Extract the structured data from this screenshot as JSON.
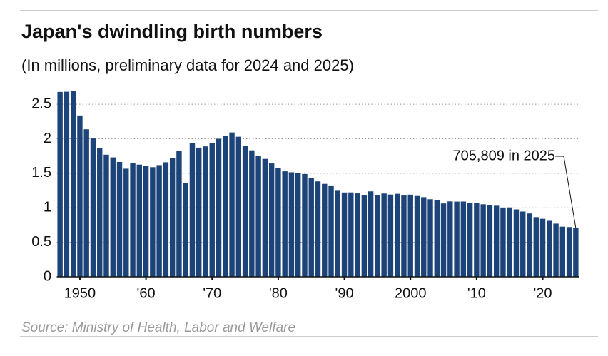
{
  "chart_data": {
    "type": "bar",
    "title": "Japan's dwindling birth numbers",
    "subtitle": "(In millions, preliminary data for 2024 and 2025)",
    "source": "Source: Ministry of Health, Labor and Welfare",
    "annotation": "705,809 in 2025",
    "color": "#1d4478",
    "x": [
      1947,
      1948,
      1949,
      1950,
      1951,
      1952,
      1953,
      1954,
      1955,
      1956,
      1957,
      1958,
      1959,
      1960,
      1961,
      1962,
      1963,
      1964,
      1965,
      1966,
      1967,
      1968,
      1969,
      1970,
      1971,
      1972,
      1973,
      1974,
      1975,
      1976,
      1977,
      1978,
      1979,
      1980,
      1981,
      1982,
      1983,
      1984,
      1985,
      1986,
      1987,
      1988,
      1989,
      1990,
      1991,
      1992,
      1993,
      1994,
      1995,
      1996,
      1997,
      1998,
      1999,
      2000,
      2001,
      2002,
      2003,
      2004,
      2005,
      2006,
      2007,
      2008,
      2009,
      2010,
      2011,
      2012,
      2013,
      2014,
      2015,
      2016,
      2017,
      2018,
      2019,
      2020,
      2021,
      2022,
      2023,
      2024,
      2025
    ],
    "values": [
      2.679,
      2.682,
      2.697,
      2.338,
      2.138,
      2.005,
      1.868,
      1.77,
      1.731,
      1.665,
      1.567,
      1.653,
      1.626,
      1.606,
      1.589,
      1.619,
      1.66,
      1.717,
      1.824,
      1.361,
      1.936,
      1.872,
      1.89,
      1.934,
      2.001,
      2.039,
      2.092,
      2.03,
      1.901,
      1.833,
      1.755,
      1.709,
      1.643,
      1.577,
      1.529,
      1.515,
      1.509,
      1.49,
      1.432,
      1.383,
      1.347,
      1.314,
      1.247,
      1.222,
      1.223,
      1.209,
      1.188,
      1.238,
      1.187,
      1.207,
      1.192,
      1.203,
      1.178,
      1.191,
      1.171,
      1.154,
      1.124,
      1.111,
      1.063,
      1.093,
      1.09,
      1.091,
      1.07,
      1.071,
      1.051,
      1.037,
      1.03,
      1.004,
      1.006,
      0.977,
      0.946,
      0.918,
      0.865,
      0.841,
      0.812,
      0.771,
      0.727,
      0.721,
      0.705809
    ],
    "xlim": [
      1946.5,
      2025.5
    ],
    "xticks": [
      1950,
      {
        "value": 1960,
        "label": "'60"
      },
      {
        "value": 1970,
        "label": "'70"
      },
      {
        "value": 1980,
        "label": "'80"
      },
      {
        "value": 1990,
        "label": "'90"
      },
      2000,
      {
        "value": 2010,
        "label": "'10"
      },
      {
        "value": 2020,
        "label": "'20"
      }
    ],
    "ylim": [
      0,
      2.75
    ],
    "yticks": [
      0,
      0.5,
      1,
      1.5,
      2,
      2.5
    ],
    "grid": true
  }
}
